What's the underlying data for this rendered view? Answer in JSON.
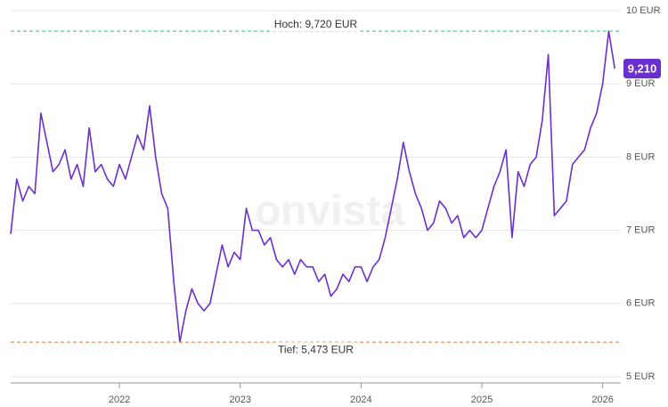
{
  "chart_data": {
    "type": "line",
    "watermark": "onvista",
    "color": "#6a2fcf",
    "xlim": [
      2021.1,
      2026.15
    ],
    "xticks": [
      2022,
      2023,
      2024,
      2025,
      2026
    ],
    "ylim": [
      5,
      10
    ],
    "yticks": [
      {
        "value": 5,
        "label": "5 EUR"
      },
      {
        "value": 6,
        "label": "6 EUR"
      },
      {
        "value": 7,
        "label": "7 EUR"
      },
      {
        "value": 8,
        "label": "8 EUR"
      },
      {
        "value": 9,
        "label": "9 EUR"
      },
      {
        "value": 10,
        "label": "10 EUR"
      }
    ],
    "grid": true,
    "high": {
      "value": 9.72,
      "label": "Hoch: 9,720 EUR",
      "color": "#2fb592"
    },
    "low": {
      "value": 5.473,
      "label": "Tief: 5,473 EUR",
      "color": "#e8732c"
    },
    "last": {
      "value": 9.21,
      "label": "9,210"
    },
    "x": [
      2021.1,
      2021.15,
      2021.2,
      2021.25,
      2021.3,
      2021.35,
      2021.4,
      2021.45,
      2021.5,
      2021.55,
      2021.6,
      2021.65,
      2021.7,
      2021.75,
      2021.8,
      2021.85,
      2021.9,
      2021.95,
      2022.0,
      2022.05,
      2022.1,
      2022.15,
      2022.2,
      2022.25,
      2022.3,
      2022.35,
      2022.4,
      2022.45,
      2022.5,
      2022.55,
      2022.6,
      2022.65,
      2022.7,
      2022.75,
      2022.8,
      2022.85,
      2022.9,
      2022.95,
      2023.0,
      2023.05,
      2023.1,
      2023.15,
      2023.2,
      2023.25,
      2023.3,
      2023.35,
      2023.4,
      2023.45,
      2023.5,
      2023.55,
      2023.6,
      2023.65,
      2023.7,
      2023.75,
      2023.8,
      2023.85,
      2023.9,
      2023.95,
      2024.0,
      2024.05,
      2024.1,
      2024.15,
      2024.2,
      2024.25,
      2024.3,
      2024.35,
      2024.4,
      2024.45,
      2024.5,
      2024.55,
      2024.6,
      2024.65,
      2024.7,
      2024.75,
      2024.8,
      2024.85,
      2024.9,
      2024.95,
      2025.0,
      2025.05,
      2025.1,
      2025.15,
      2025.2,
      2025.25,
      2025.3,
      2025.35,
      2025.4,
      2025.45,
      2025.5,
      2025.55,
      2025.6,
      2025.65,
      2025.7,
      2025.75,
      2025.8,
      2025.85,
      2025.9,
      2025.95,
      2026.0,
      2026.05,
      2026.1
    ],
    "values": [
      6.95,
      7.7,
      7.4,
      7.6,
      7.5,
      8.6,
      8.2,
      7.8,
      7.9,
      8.1,
      7.7,
      7.9,
      7.6,
      8.4,
      7.8,
      7.9,
      7.7,
      7.6,
      7.9,
      7.7,
      8.0,
      8.3,
      8.1,
      8.7,
      8.0,
      7.5,
      7.3,
      6.3,
      5.473,
      5.9,
      6.2,
      6.0,
      5.9,
      6.0,
      6.4,
      6.8,
      6.5,
      6.7,
      6.6,
      7.3,
      7.0,
      7.0,
      6.8,
      6.9,
      6.6,
      6.5,
      6.6,
      6.4,
      6.6,
      6.5,
      6.5,
      6.3,
      6.4,
      6.1,
      6.2,
      6.4,
      6.3,
      6.5,
      6.5,
      6.3,
      6.5,
      6.6,
      6.9,
      7.3,
      7.7,
      8.2,
      7.8,
      7.5,
      7.3,
      7.0,
      7.1,
      7.4,
      7.3,
      7.1,
      7.2,
      6.9,
      7.0,
      6.9,
      7.0,
      7.3,
      7.6,
      7.8,
      8.1,
      6.9,
      7.8,
      7.6,
      7.9,
      8.0,
      8.5,
      9.4,
      7.2,
      7.3,
      7.4,
      7.9,
      8.0,
      8.1,
      8.4,
      8.6,
      9.0,
      9.72,
      9.21
    ]
  }
}
